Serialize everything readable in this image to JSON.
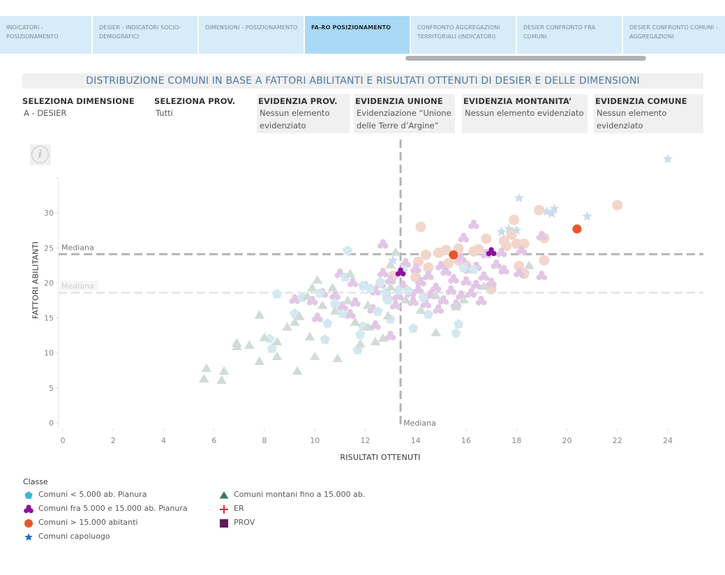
{
  "tabs": [
    {
      "label": "INDICATORI - POSIZIONAMENTO",
      "active": false
    },
    {
      "label": "DESIER - INDICATORI SOCIO-DEMOGRAFICI",
      "active": false
    },
    {
      "label": "DIMENSIONI - POSIZIONAMENTO",
      "active": false
    },
    {
      "label": "FA-RO POSIZIONAMENTO",
      "active": true
    },
    {
      "label": "CONFRONTO AGGREGAZIONI TERRITORIALI (INDICATORI)",
      "active": false
    },
    {
      "label": "DESIER CONFRONTO FRA COMUNI",
      "active": false
    },
    {
      "label": "DESIER CONFRONTO COMUNI - AGGREGAZIONI",
      "active": false
    }
  ],
  "title": "DISTRIBUZIONE COMUNI IN BASE A FATTORI ABILITANTI E RISULTATI OTTENUTI DI DESIER E DELLE DIMENSIONI",
  "filters": [
    {
      "label": "SELEZIONA DIMENSIONE",
      "value": "A - DESIER"
    },
    {
      "label": "SELEZIONA PROV.",
      "value": "Tutti"
    },
    {
      "label": "EVIDENZIA PROV.",
      "value": "Nessun elemento evidenziato"
    },
    {
      "label": "EVIDENZIA UNIONE",
      "value": "Evidenziazione “Unione delle Terre d’Argine”"
    },
    {
      "label": "EVIDENZIA MONTANITA’",
      "value": "Nessun elemento evidenziato"
    },
    {
      "label": "EVIDENZIA COMUNE",
      "value": "Nessun elemento evidenziato"
    }
  ],
  "info_icon": "info-icon",
  "legend": {
    "title": "Classe",
    "items": [
      {
        "label": "Comuni < 5.000 ab. Pianura",
        "shape": "pentagon",
        "color": "#3bb6dc",
        "faded": "#d3e8f0"
      },
      {
        "label": "Comuni fra 5.000 e 15.000 ab. Pianura",
        "shape": "trefoil",
        "color": "#8e0f9e",
        "faded": "#e3c6e6"
      },
      {
        "label": "Comuni > 15.000 abitanti",
        "shape": "circle",
        "color": "#e8562a",
        "faded": "#f2d6cc"
      },
      {
        "label": "Comuni capoluogo",
        "shape": "star",
        "color": "#1f6fc9",
        "faded": "#c9dcf0"
      },
      {
        "label": "Comuni montani fino a 15.000 ab.",
        "shape": "triangle",
        "color": "#3b7a5c",
        "faded": "#d0dcd8"
      },
      {
        "label": "ER",
        "shape": "cross",
        "color": "#e0283b",
        "faded": "#f5c3c8"
      },
      {
        "label": "PROV",
        "shape": "square",
        "color": "#5e1d56",
        "faded": "#dcc9d9"
      }
    ]
  },
  "chart_data": {
    "type": "scatter",
    "title": "DISTRIBUZIONE COMUNI IN BASE A FATTORI ABILITANTI E RISULTATI OTTENUTI DI DESIER E DELLE DIMENSIONI",
    "xlabel": "RISULTATI OTTENUTI",
    "ylabel": "FATTORI ABILITANTI",
    "xlim": [
      -0.3,
      25.3
    ],
    "ylim": [
      -0.8,
      34.5
    ],
    "xticks": [
      0,
      2,
      4,
      6,
      8,
      10,
      12,
      14,
      16,
      18,
      20,
      22,
      24
    ],
    "yticks": [
      0,
      5,
      10,
      15,
      20,
      25,
      30
    ],
    "grid": false,
    "legend_position": "bottom-left",
    "reference_lines": [
      {
        "axis": "x",
        "value": 13.4,
        "label": "Mediana",
        "style": "dashed-dark"
      },
      {
        "axis": "y",
        "value": 24.1,
        "label": "Mediana",
        "style": "dashed-dark"
      },
      {
        "axis": "y",
        "value": 18.6,
        "label": "Mediana",
        "style": "dashed-light"
      }
    ],
    "series": [
      {
        "name": "Comuni capoluogo",
        "shape": "star",
        "highlighted": [],
        "points": [
          [
            24.0,
            37.7
          ],
          [
            18.1,
            32.1
          ],
          [
            19.2,
            30.2
          ],
          [
            19.5,
            30.6
          ],
          [
            19.4,
            29.9
          ],
          [
            20.8,
            29.5
          ],
          [
            17.7,
            27.7
          ],
          [
            18.0,
            27.5
          ],
          [
            17.4,
            27.3
          ],
          [
            13.1,
            23.2
          ]
        ]
      },
      {
        "name": "Comuni > 15.000 abitanti",
        "shape": "circle",
        "highlighted": [
          [
            15.5,
            24.0
          ],
          [
            20.4,
            27.7
          ]
        ],
        "points": [
          [
            22.0,
            31.1
          ],
          [
            18.9,
            30.4
          ],
          [
            14.2,
            28.0
          ],
          [
            17.9,
            29.0
          ],
          [
            19.1,
            26.4
          ],
          [
            17.8,
            26.9
          ],
          [
            17.5,
            26.0
          ],
          [
            17.6,
            25.3
          ],
          [
            18.3,
            25.6
          ],
          [
            18.0,
            25.6
          ],
          [
            16.8,
            26.3
          ],
          [
            16.5,
            24.8
          ],
          [
            15.7,
            24.9
          ],
          [
            15.2,
            24.7
          ],
          [
            14.9,
            24.3
          ],
          [
            14.4,
            24.0
          ],
          [
            15.7,
            23.2
          ],
          [
            16.3,
            24.5
          ],
          [
            14.1,
            23.0
          ],
          [
            14.5,
            22.2
          ],
          [
            13.1,
            21.0
          ],
          [
            18.1,
            22.4
          ],
          [
            18.3,
            21.3
          ],
          [
            19.1,
            23.2
          ],
          [
            17.0,
            19.1
          ],
          [
            16.0,
            22.5
          ],
          [
            15.3,
            22.8
          ],
          [
            14.0,
            20.8
          ]
        ]
      },
      {
        "name": "Comuni fra 5.000 e 15.000 ab. Pianura",
        "shape": "trefoil",
        "highlighted": [
          [
            13.4,
            21.5
          ],
          [
            17.0,
            24.4
          ]
        ],
        "points": [
          [
            12.7,
            25.5
          ],
          [
            16.3,
            28.3
          ],
          [
            15.9,
            26.4
          ],
          [
            16.8,
            24.1
          ],
          [
            17.4,
            24.3
          ],
          [
            19.0,
            26.7
          ],
          [
            18.2,
            24.6
          ],
          [
            18.1,
            21.4
          ],
          [
            19.0,
            21.0
          ],
          [
            17.2,
            22.6
          ],
          [
            16.4,
            22.3
          ],
          [
            15.8,
            23.5
          ],
          [
            16.1,
            21.9
          ],
          [
            15.0,
            22.4
          ],
          [
            14.5,
            21.0
          ],
          [
            14.2,
            20.1
          ],
          [
            14.8,
            19.3
          ],
          [
            15.5,
            20.5
          ],
          [
            16.0,
            20.2
          ],
          [
            16.4,
            19.7
          ],
          [
            15.4,
            18.9
          ],
          [
            14.6,
            18.3
          ],
          [
            13.8,
            18.5
          ],
          [
            13.5,
            19.6
          ],
          [
            13.0,
            20.4
          ],
          [
            12.6,
            19.8
          ],
          [
            12.4,
            18.8
          ],
          [
            12.0,
            19.5
          ],
          [
            11.5,
            20.0
          ],
          [
            11.0,
            21.3
          ],
          [
            10.8,
            18.2
          ],
          [
            10.3,
            18.5
          ],
          [
            9.9,
            17.4
          ],
          [
            11.1,
            16.6
          ],
          [
            12.3,
            16.2
          ],
          [
            13.2,
            16.8
          ],
          [
            13.9,
            17.3
          ],
          [
            14.4,
            17.0
          ],
          [
            15.1,
            17.5
          ],
          [
            15.8,
            18.2
          ],
          [
            16.6,
            17.4
          ],
          [
            17.5,
            21.8
          ],
          [
            15.2,
            21.6
          ],
          [
            14.0,
            22.0
          ],
          [
            13.6,
            22.8
          ],
          [
            16.7,
            20.9
          ],
          [
            12.9,
            17.9
          ],
          [
            11.6,
            17.2
          ],
          [
            10.1,
            15.0
          ],
          [
            9.2,
            17.6
          ],
          [
            12.4,
            13.9
          ],
          [
            11.4,
            15.5
          ],
          [
            13.0,
            12.4
          ],
          [
            14.9,
            16.2
          ],
          [
            15.6,
            16.9
          ],
          [
            16.2,
            18.5
          ],
          [
            17.0,
            20.0
          ],
          [
            14.1,
            19.0
          ],
          [
            13.3,
            18.1
          ],
          [
            12.7,
            21.4
          ]
        ]
      },
      {
        "name": "Comuni < 5.000 ab. Pianura",
        "shape": "pentagon",
        "highlighted": [],
        "points": [
          [
            11.3,
            24.6
          ],
          [
            8.5,
            18.4
          ],
          [
            9.5,
            17.9
          ],
          [
            10.2,
            18.5
          ],
          [
            10.8,
            17.0
          ],
          [
            11.2,
            20.8
          ],
          [
            11.9,
            19.6
          ],
          [
            12.2,
            19.2
          ],
          [
            12.6,
            20.1
          ],
          [
            12.8,
            18.6
          ],
          [
            9.2,
            15.6
          ],
          [
            10.5,
            14.2
          ],
          [
            11.1,
            15.6
          ],
          [
            11.9,
            13.8
          ],
          [
            12.5,
            15.9
          ],
          [
            13.0,
            14.8
          ],
          [
            12.9,
            17.5
          ],
          [
            10.4,
            11.9
          ],
          [
            11.8,
            12.6
          ],
          [
            8.3,
            10.6
          ],
          [
            8.2,
            12.0
          ],
          [
            13.5,
            21.8
          ],
          [
            13.3,
            18.9
          ],
          [
            13.7,
            18.9
          ],
          [
            14.5,
            15.5
          ],
          [
            15.7,
            14.1
          ],
          [
            15.6,
            12.8
          ],
          [
            13.9,
            13.5
          ],
          [
            15.9,
            22.1
          ],
          [
            11.7,
            10.4
          ],
          [
            16.3,
            21.9
          ],
          [
            14.3,
            17.9
          ]
        ]
      },
      {
        "name": "Comuni montani fino a 15.000 ab.",
        "shape": "triangle",
        "highlighted": [],
        "points": [
          [
            5.6,
            6.3
          ],
          [
            5.7,
            7.8
          ],
          [
            6.3,
            6.1
          ],
          [
            6.4,
            7.4
          ],
          [
            6.9,
            10.9
          ],
          [
            6.9,
            11.4
          ],
          [
            7.4,
            11.1
          ],
          [
            7.8,
            8.8
          ],
          [
            7.8,
            15.4
          ],
          [
            8.0,
            12.2
          ],
          [
            8.5,
            9.5
          ],
          [
            8.5,
            11.6
          ],
          [
            8.9,
            13.7
          ],
          [
            9.2,
            14.4
          ],
          [
            9.3,
            7.4
          ],
          [
            9.4,
            15.2
          ],
          [
            9.8,
            12.3
          ],
          [
            9.9,
            19.3
          ],
          [
            10.0,
            9.5
          ],
          [
            10.3,
            16.8
          ],
          [
            10.7,
            19.3
          ],
          [
            10.8,
            16.0
          ],
          [
            10.9,
            9.2
          ],
          [
            11.3,
            17.5
          ],
          [
            11.6,
            14.4
          ],
          [
            11.8,
            11.3
          ],
          [
            12.1,
            13.7
          ],
          [
            12.4,
            11.6
          ],
          [
            12.7,
            12.1
          ],
          [
            12.9,
            15.3
          ],
          [
            13.0,
            22.6
          ],
          [
            13.2,
            24.4
          ],
          [
            13.0,
            19.4
          ],
          [
            13.6,
            17.6
          ],
          [
            14.2,
            16.1
          ],
          [
            14.8,
            12.9
          ],
          [
            15.6,
            16.6
          ],
          [
            16.7,
            19.5
          ],
          [
            18.5,
            22.5
          ],
          [
            12.1,
            16.8
          ],
          [
            11.4,
            21.3
          ],
          [
            9.7,
            18.1
          ],
          [
            10.1,
            20.4
          ],
          [
            14.8,
            18.2
          ],
          [
            15.9,
            17.6
          ]
        ]
      }
    ]
  }
}
